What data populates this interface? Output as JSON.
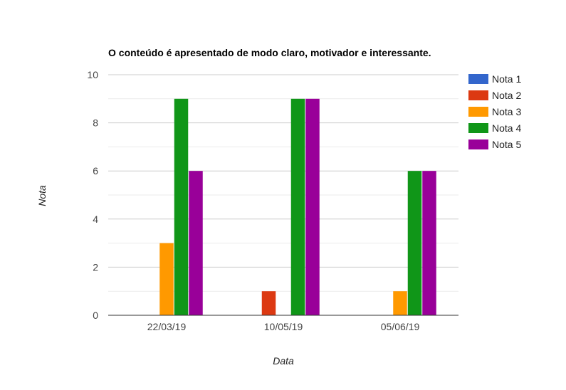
{
  "chart_data": {
    "type": "bar",
    "title": "O conteúdo é apresentado de modo claro, motivador e interessante.",
    "xlabel": "Data",
    "ylabel": "Nota",
    "categories": [
      "22/03/19",
      "10/05/19",
      "05/06/19"
    ],
    "ylim": [
      0,
      10
    ],
    "yticks": [
      0,
      2,
      4,
      6,
      8,
      10
    ],
    "grid": true,
    "legend_position": "right",
    "series": [
      {
        "name": "Nota 1",
        "color": "#3366cc",
        "values": [
          0,
          0,
          0
        ]
      },
      {
        "name": "Nota 2",
        "color": "#dc3912",
        "values": [
          0,
          1,
          0
        ]
      },
      {
        "name": "Nota 3",
        "color": "#ff9900",
        "values": [
          3,
          0,
          1
        ]
      },
      {
        "name": "Nota 4",
        "color": "#109618",
        "values": [
          9,
          9,
          6
        ]
      },
      {
        "name": "Nota 5",
        "color": "#990099",
        "values": [
          6,
          9,
          6
        ]
      }
    ]
  }
}
